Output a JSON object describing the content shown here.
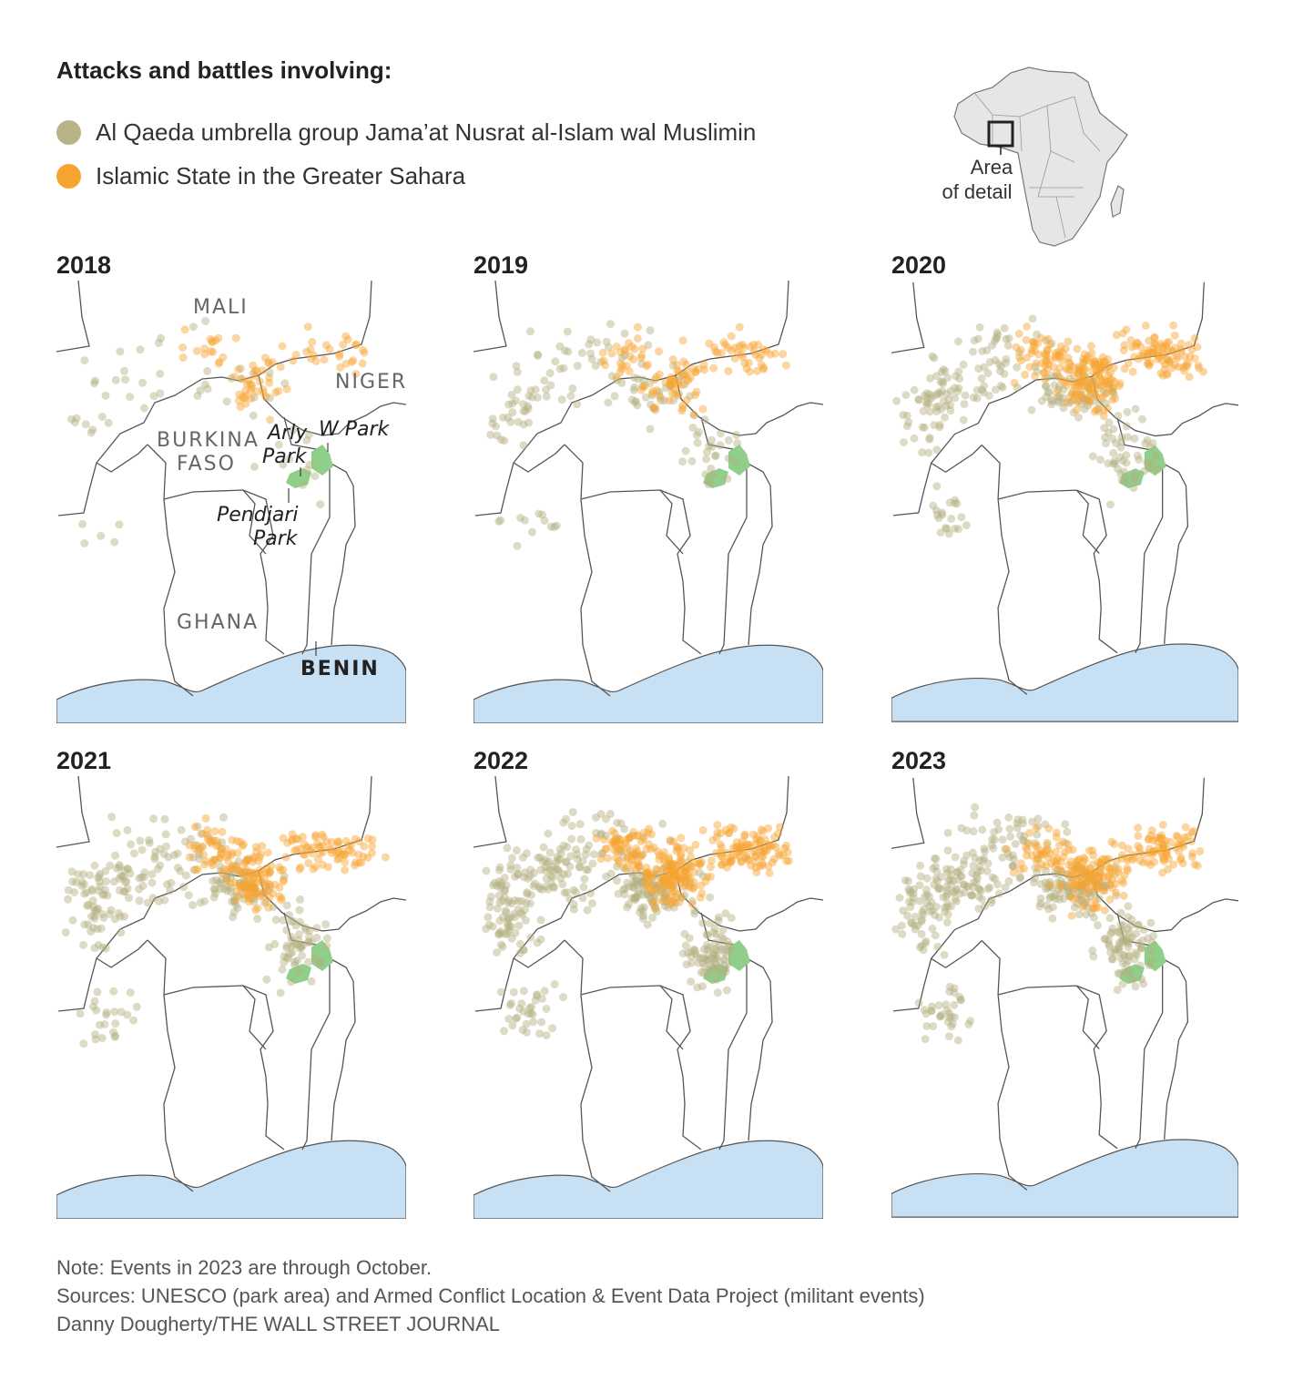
{
  "heading": "Attacks and battles involving:",
  "legend": [
    {
      "label": "Al Qaeda umbrella group Jama’at Nusrat al-Islam wal Muslimin",
      "color": "#b8b487"
    },
    {
      "label": "Islamic State in the Greater Sahara",
      "color": "#f7a330"
    }
  ],
  "locator": {
    "label_line1": "Area",
    "label_line2": "of detail"
  },
  "colors": {
    "water": "#c8e0f4",
    "park": "#8fcf8a",
    "border": "#555555",
    "jnim": "#b3af80",
    "isgs": "#f7a330"
  },
  "labels": {
    "mali": "MALI",
    "niger": "NIGER",
    "burkina1": "BURKINA",
    "burkina2": "FASO",
    "ghana": "GHANA",
    "benin": "BENIN",
    "arly1": "Arly",
    "arly2": "Park",
    "wpark": "W Park",
    "pendjari1": "Pendjari",
    "pendjari2": "Park"
  },
  "panels": [
    {
      "year": "2018",
      "jnim": 0.14,
      "isgs": 0.2
    },
    {
      "year": "2019",
      "jnim": 0.35,
      "isgs": 0.3
    },
    {
      "year": "2020",
      "jnim": 0.6,
      "isgs": 0.65
    },
    {
      "year": "2021",
      "jnim": 0.7,
      "isgs": 0.55
    },
    {
      "year": "2022",
      "jnim": 1.0,
      "isgs": 0.75
    },
    {
      "year": "2023",
      "jnim": 1.0,
      "isgs": 0.6
    }
  ],
  "notes": {
    "note": "Note: Events in 2023 are through October.",
    "sources": "Sources: UNESCO (park area) and Armed Conflict Location & Event Data Project (militant events)",
    "credit": "Danny Dougherty/THE WALL STREET JOURNAL"
  }
}
